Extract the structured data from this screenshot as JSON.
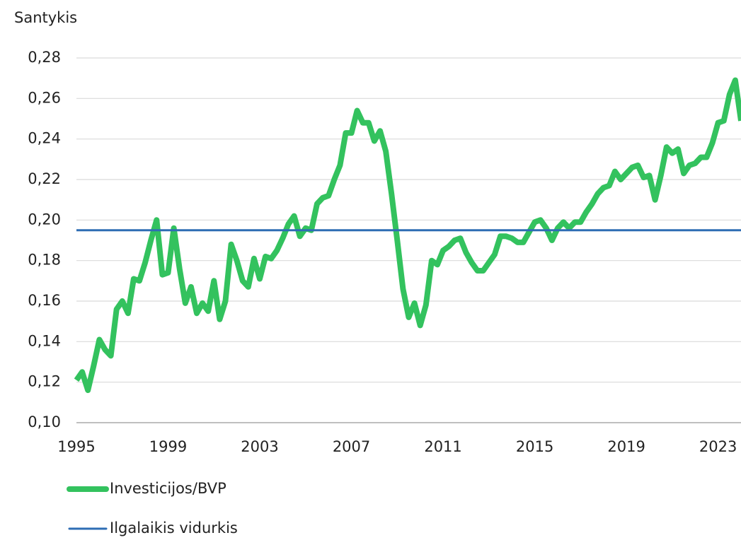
{
  "chart_data": {
    "type": "line",
    "ylabel": "Santykis",
    "x": [
      1995,
      1995.25,
      1995.5,
      1995.75,
      1996,
      1996.25,
      1996.5,
      1996.75,
      1997,
      1997.25,
      1997.5,
      1997.75,
      1998,
      1998.25,
      1998.5,
      1998.75,
      1999,
      1999.25,
      1999.5,
      1999.75,
      2000,
      2000.25,
      2000.5,
      2000.75,
      2001,
      2001.25,
      2001.5,
      2001.75,
      2002,
      2002.25,
      2002.5,
      2002.75,
      2003,
      2003.25,
      2003.5,
      2003.75,
      2004,
      2004.25,
      2004.5,
      2004.75,
      2005,
      2005.25,
      2005.5,
      2005.75,
      2006,
      2006.25,
      2006.5,
      2006.75,
      2007,
      2007.25,
      2007.5,
      2007.75,
      2008,
      2008.25,
      2008.5,
      2008.75,
      2009,
      2009.25,
      2009.5,
      2009.75,
      2010,
      2010.25,
      2010.5,
      2010.75,
      2011,
      2011.25,
      2011.5,
      2011.75,
      2012,
      2012.25,
      2012.5,
      2012.75,
      2013,
      2013.25,
      2013.5,
      2013.75,
      2014,
      2014.25,
      2014.5,
      2014.75,
      2015,
      2015.25,
      2015.5,
      2015.75,
      2016,
      2016.25,
      2016.5,
      2016.75,
      2017,
      2017.25,
      2017.5,
      2017.75,
      2018,
      2018.25,
      2018.5,
      2018.75,
      2019,
      2019.25,
      2019.5,
      2019.75,
      2020,
      2020.25,
      2020.5,
      2020.75,
      2021,
      2021.25,
      2021.5,
      2021.75,
      2022,
      2022.25,
      2022.5,
      2022.75,
      2023,
      2023.25,
      2023.5,
      2023.75,
      2024
    ],
    "series": [
      {
        "name": "Investicijos/BVP",
        "color": "#33c25e",
        "values": [
          0.121,
          0.125,
          0.116,
          0.128,
          0.141,
          0.136,
          0.133,
          0.156,
          0.16,
          0.154,
          0.171,
          0.17,
          0.179,
          0.19,
          0.2,
          0.173,
          0.174,
          0.196,
          0.176,
          0.159,
          0.167,
          0.154,
          0.159,
          0.155,
          0.17,
          0.151,
          0.16,
          0.188,
          0.18,
          0.17,
          0.167,
          0.181,
          0.171,
          0.182,
          0.181,
          0.185,
          0.191,
          0.198,
          0.202,
          0.192,
          0.196,
          0.195,
          0.208,
          0.211,
          0.212,
          0.22,
          0.227,
          0.243,
          0.243,
          0.254,
          0.248,
          0.248,
          0.239,
          0.244,
          0.234,
          0.213,
          0.19,
          0.166,
          0.152,
          0.159,
          0.148,
          0.158,
          0.18,
          0.178,
          0.185,
          0.187,
          0.19,
          0.191,
          0.184,
          0.179,
          0.175,
          0.175,
          0.179,
          0.183,
          0.192,
          0.192,
          0.191,
          0.189,
          0.189,
          0.194,
          0.199,
          0.2,
          0.196,
          0.19,
          0.196,
          0.199,
          0.196,
          0.199,
          0.199,
          0.204,
          0.208,
          0.213,
          0.216,
          0.217,
          0.224,
          0.22,
          0.223,
          0.226,
          0.227,
          0.221,
          0.222,
          0.21,
          0.222,
          0.236,
          0.233,
          0.235,
          0.223,
          0.227,
          0.228,
          0.231,
          0.231,
          0.238,
          0.248,
          0.249,
          0.262,
          0.269,
          0.249
        ]
      },
      {
        "name": "Ilgalaikis vidurkis",
        "color": "#2e6db4",
        "x": [
          1995,
          2024
        ],
        "values": [
          0.195,
          0.195
        ]
      }
    ],
    "xlim": [
      1995,
      2024
    ],
    "xticks": [
      1995,
      1999,
      2003,
      2007,
      2011,
      2015,
      2019,
      2023
    ],
    "ylim": [
      0.1,
      0.28
    ],
    "yticks": [
      {
        "value": 0.1,
        "label": "0,10"
      },
      {
        "value": 0.12,
        "label": "0,12"
      },
      {
        "value": 0.14,
        "label": "0,14"
      },
      {
        "value": 0.16,
        "label": "0,16"
      },
      {
        "value": 0.18,
        "label": "0,18"
      },
      {
        "value": 0.2,
        "label": "0,20"
      },
      {
        "value": 0.22,
        "label": "0,22"
      },
      {
        "value": 0.24,
        "label": "0,24"
      },
      {
        "value": 0.26,
        "label": "0,26"
      },
      {
        "value": 0.28,
        "label": "0,28"
      }
    ],
    "grid": true
  }
}
